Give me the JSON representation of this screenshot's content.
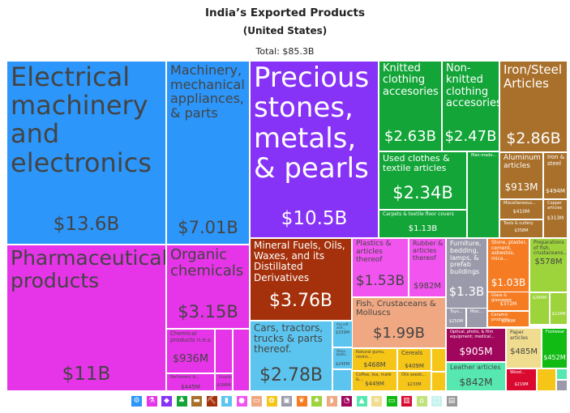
{
  "chart_data": {
    "type": "treemap",
    "title": "India’s Exported Products",
    "subtitle": "(United States)",
    "total_label": "Total: $85.3B",
    "total": 85.3,
    "unit": "B USD",
    "items": [
      {
        "label": "Electrical machinery and electronics",
        "value_label": "$13.6B",
        "value": 13.6,
        "color": "#2c96fa"
      },
      {
        "label": "Machinery, mechanical appliances, & parts",
        "value_label": "$7.01B",
        "value": 7.01,
        "color": "#2c96fa"
      },
      {
        "label": "Precious stones, metals, & pearls",
        "value_label": "$10.5B",
        "value": 10.5,
        "color": "#8732f7"
      },
      {
        "label": "Knitted clothing accesories",
        "value_label": "$2.63B",
        "value": 2.63,
        "color": "#13a538"
      },
      {
        "label": "Non-knitted clothing accesories",
        "value_label": "$2.47B",
        "value": 2.47,
        "color": "#13a538"
      },
      {
        "label": "Used clothes & textile articles",
        "value_label": "$2.34B",
        "value": 2.34,
        "color": "#13a538"
      },
      {
        "label": "Carpets & textile floor covers",
        "value_label": "$1.13B",
        "value": 1.13,
        "color": "#13a538"
      },
      {
        "label": "Man-made...",
        "value_label": "",
        "value": 0.3,
        "color": "#13a538"
      },
      {
        "label": "Iron/Steel Articles",
        "value_label": "$2.86B",
        "value": 2.86,
        "color": "#a8702b"
      },
      {
        "label": "Aluminum articles",
        "value_label": "$913M",
        "value": 0.913,
        "color": "#a8702b"
      },
      {
        "label": "Iron & steel",
        "value_label": "$494M",
        "value": 0.494,
        "color": "#a8702b"
      },
      {
        "label": "Miscellaneous...",
        "value_label": "$410M",
        "value": 0.41,
        "color": "#a8702b"
      },
      {
        "label": "Copper articles",
        "value_label": "$313M",
        "value": 0.313,
        "color": "#a8702b"
      },
      {
        "label": "Tools & cutlery",
        "value_label": "$358M",
        "value": 0.358,
        "color": "#a8702b"
      },
      {
        "label": "Pharmaceutical products",
        "value_label": "$11B",
        "value": 11.0,
        "color": "#e634e8"
      },
      {
        "label": "Organic chemicals",
        "value_label": "$3.15B",
        "value": 3.15,
        "color": "#e634e8"
      },
      {
        "label": "Chemical products n.e.s.",
        "value_label": "$936M",
        "value": 0.936,
        "color": "#e634e8"
      },
      {
        "label": "Perfumery &...",
        "value_label": "$445M",
        "value": 0.445,
        "color": "#e634e8"
      },
      {
        "label": "Essential...",
        "value_label": "$188M",
        "value": 0.188,
        "color": "#e634e8"
      },
      {
        "label": "Mineral Fuels, Oils, Waxes, and its Distillated Derivatives",
        "value_label": "$3.76B",
        "value": 3.76,
        "color": "#a4310b"
      },
      {
        "label": "Plastics & articles thereof",
        "value_label": "$1.53B",
        "value": 1.53,
        "color": "#f254f0"
      },
      {
        "label": "Rubber & articles thereof",
        "value_label": "$982M",
        "value": 0.982,
        "color": "#f254f0"
      },
      {
        "label": "Furniture, bedding, lamps, & prefab buildings",
        "value_label": "$1.3B",
        "value": 1.3,
        "color": "#9a9aaa"
      },
      {
        "label": "Toys...",
        "value_label": "$250M",
        "value": 0.25,
        "color": "#9a9aaa"
      },
      {
        "label": "Misc...",
        "value_label": "",
        "value": 0.2,
        "color": "#9a9aaa"
      },
      {
        "label": "Stone, plaster, cement, asbestos, mica...",
        "value_label": "$1.03B",
        "value": 1.03,
        "color": "#f57c22"
      },
      {
        "label": "Glass & glassware",
        "value_label": "$372M",
        "value": 0.372,
        "color": "#f57c22"
      },
      {
        "label": "Ceramic products",
        "value_label": "$290M",
        "value": 0.29,
        "color": "#f57c22"
      },
      {
        "label": "Preparations of fish, crustaceans...",
        "value_label": "$578M",
        "value": 0.578,
        "color": "#9dd33b"
      },
      {
        "label": "",
        "value_label": "$264M",
        "value": 0.264,
        "color": "#9dd33b"
      },
      {
        "label": "",
        "value_label": "$224M",
        "value": 0.224,
        "color": "#9dd33b"
      },
      {
        "label": "Fish, Crustaceans & Molluscs",
        "value_label": "$1.99B",
        "value": 1.99,
        "color": "#f0a882"
      },
      {
        "label": "Cars, tractors, trucks & parts thereof.",
        "value_label": "$2.78B",
        "value": 2.78,
        "color": "#5bc5ef"
      },
      {
        "label": "Aircraft and...",
        "value_label": "$339M",
        "value": 0.339,
        "color": "#5bc5ef"
      },
      {
        "label": "Ships, boats...",
        "value_label": "$245M",
        "value": 0.245,
        "color": "#5bc5ef"
      },
      {
        "label": "Natural gums, resins...",
        "value_label": "$468M",
        "value": 0.468,
        "color": "#f5c518"
      },
      {
        "label": "Cereals",
        "value_label": "$409M",
        "value": 0.409,
        "color": "#f5c518"
      },
      {
        "label": "Coffee, tea, maté &...",
        "value_label": "$449M",
        "value": 0.449,
        "color": "#f5c518"
      },
      {
        "label": "Oils seeds...",
        "value_label": "$233M",
        "value": 0.233,
        "color": "#f5c518"
      },
      {
        "label": "Optical, photo, & film equipment; medical...",
        "value_label": "$905M",
        "value": 0.905,
        "color": "#a0065c"
      },
      {
        "label": "Leather articles",
        "value_label": "$842M",
        "value": 0.842,
        "color": "#56e8b0"
      },
      {
        "label": "Paper articles",
        "value_label": "$485M",
        "value": 0.485,
        "color": "#efdc8e"
      },
      {
        "label": "Footwear",
        "value_label": "$452M",
        "value": 0.452,
        "color": "#12bb14"
      },
      {
        "label": "Wood...",
        "value_label": "$219M",
        "value": 0.219,
        "color": "#d9092f"
      }
    ],
    "legend": [
      {
        "icon": "gear-icon",
        "color": "#2c96fa",
        "glyph": "⚙"
      },
      {
        "icon": "flask-icon",
        "color": "#e634e8",
        "glyph": "⚗"
      },
      {
        "icon": "gem-icon",
        "color": "#8732f7",
        "glyph": "◆"
      },
      {
        "icon": "shirt-icon",
        "color": "#13a538",
        "glyph": "♣"
      },
      {
        "icon": "truck-icon",
        "color": "#a8702b",
        "glyph": "▬"
      },
      {
        "icon": "pickaxe-icon",
        "color": "#a4310b",
        "glyph": "⛏"
      },
      {
        "icon": "bottle-icon",
        "color": "#5bc5ef",
        "glyph": "▮"
      },
      {
        "icon": "pig-icon",
        "color": "#f254f0",
        "glyph": "●"
      },
      {
        "icon": "sofa-icon",
        "color": "#f0a882",
        "glyph": "▭"
      },
      {
        "icon": "grain-icon",
        "color": "#f5c518",
        "glyph": "✿"
      },
      {
        "icon": "box-icon",
        "color": "#9a9aaa",
        "glyph": "▣"
      },
      {
        "icon": "wheat-icon",
        "color": "#f57c22",
        "glyph": "❦"
      },
      {
        "icon": "plant-icon",
        "color": "#9dd33b",
        "glyph": "♠"
      },
      {
        "icon": "fish-icon",
        "color": "#f0a882",
        "glyph": "◗"
      },
      {
        "icon": "gauge-icon",
        "color": "#a0065c",
        "glyph": "◔"
      },
      {
        "icon": "shoe-icon",
        "color": "#56e8b0",
        "glyph": "▲"
      },
      {
        "icon": "paper-icon",
        "color": "#efdc8e",
        "glyph": "≡"
      },
      {
        "icon": "car-icon",
        "color": "#12bb14",
        "glyph": "▭"
      },
      {
        "icon": "train-icon",
        "color": "#d9092f",
        "glyph": "▥"
      },
      {
        "icon": "hat-icon",
        "color": "#bfe37a",
        "glyph": "⌂"
      },
      {
        "icon": "misc-icon",
        "color": "#c6f2ef",
        "glyph": "□"
      },
      {
        "icon": "art-icon",
        "color": "#999999",
        "glyph": "▤"
      }
    ]
  }
}
